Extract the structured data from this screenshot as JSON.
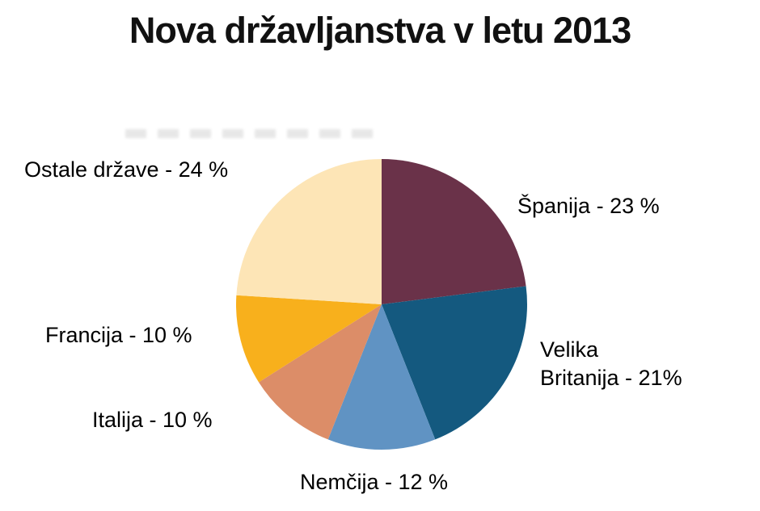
{
  "title": "Nova državljanstva v letu 2013",
  "chart_data": {
    "type": "pie",
    "title": "Nova državljanstva v letu 2013",
    "start_angle_deg": 0,
    "direction": "clockwise",
    "legend_position": "labels-around-pie",
    "slices": [
      {
        "label": "Španija",
        "value": 23,
        "display": "Španija - 23 %",
        "color": "#6A3249"
      },
      {
        "label": "Velika Britanija",
        "value": 21,
        "display": "Velika\nBritanija - 21%",
        "color": "#14597F"
      },
      {
        "label": "Nemčija",
        "value": 12,
        "display": "Nemčija - 12 %",
        "color": "#6093C3"
      },
      {
        "label": "Italija",
        "value": 10,
        "display": "Italija - 10 %",
        "color": "#DC8D68"
      },
      {
        "label": "Francija",
        "value": 10,
        "display": "Francija - 10 %",
        "color": "#F8B01C"
      },
      {
        "label": "Ostale države",
        "value": 24,
        "display": "Ostale države - 24 %",
        "color": "#FDE5B6"
      }
    ]
  }
}
